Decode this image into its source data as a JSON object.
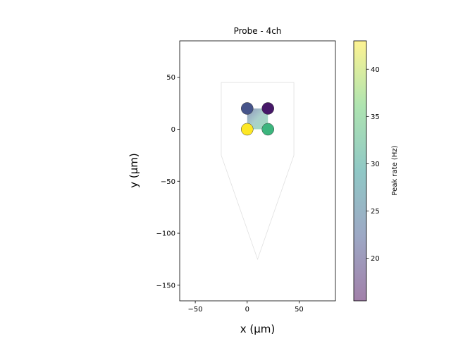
{
  "chart_data": {
    "type": "scatter",
    "title": "Probe - 4ch",
    "xlabel": "x (μm)",
    "ylabel": "y (μm)",
    "xlim": [
      -65,
      85
    ],
    "ylim": [
      -165,
      85
    ],
    "xticks": [
      -50,
      0,
      50
    ],
    "yticks": [
      -150,
      -100,
      -50,
      0,
      50
    ],
    "probe_outline": {
      "x": [
        -25,
        45,
        45,
        10,
        -25,
        -25
      ],
      "y": [
        45,
        45,
        -25,
        -125,
        -25,
        45
      ]
    },
    "contact_square": {
      "x": [
        0,
        20
      ],
      "y": [
        0,
        20
      ]
    },
    "points": [
      {
        "x": 0,
        "y": 20,
        "value": 21,
        "color": "#46548a"
      },
      {
        "x": 20,
        "y": 20,
        "value": 15.5,
        "color": "#461868"
      },
      {
        "x": 0,
        "y": 0,
        "value": 43,
        "color": "#fde725"
      },
      {
        "x": 20,
        "y": 0,
        "value": 32,
        "color": "#3cb57d"
      }
    ],
    "colorbar": {
      "label": "Peak rate (Hz)",
      "range": [
        15.5,
        43
      ],
      "ticks": [
        20,
        25,
        30,
        35,
        40
      ],
      "colormap": "viridis",
      "alpha": 0.5
    }
  }
}
